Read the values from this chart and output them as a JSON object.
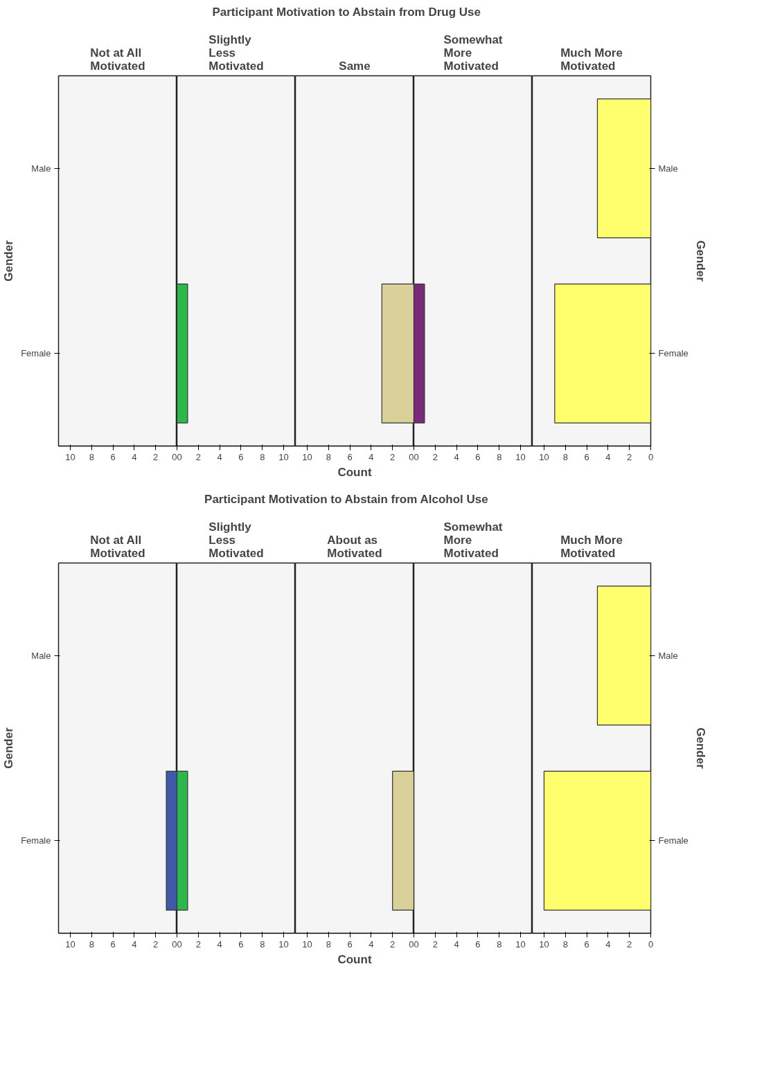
{
  "chart_data": [
    {
      "type": "other",
      "title": "Participant Motivation to Abstain from Drug Use"
    },
    {
      "type": "bar",
      "orientation": "horizontal",
      "subtitle": "Not at All Motivated",
      "ylabel": "Gender",
      "categories": [
        "Male",
        "Female"
      ],
      "values": [
        0,
        0
      ],
      "color": "#3e5aa8",
      "xlim": [
        11.1,
        0
      ],
      "xticks": [
        10,
        8,
        6,
        4,
        2,
        0
      ]
    },
    {
      "type": "bar",
      "orientation": "horizontal",
      "subtitle": "Slightly Less Motivated",
      "categories": [
        "Male",
        "Female"
      ],
      "values": [
        0,
        1
      ],
      "color": "#2db84b",
      "xlim": [
        0,
        11.1
      ],
      "xticks": [
        0,
        2,
        4,
        6,
        8,
        10
      ],
      "tick_labels": "x"
    },
    {
      "type": "bar",
      "orientation": "horizontal",
      "subtitle": "Same",
      "xlabel": "Count",
      "categories": [
        "Male",
        "Female"
      ],
      "values": [
        0,
        3
      ],
      "color": "#d9d09a",
      "xlim": [
        11.1,
        0
      ],
      "xticks": [
        10,
        8,
        6,
        4,
        2,
        0
      ],
      "tick_labels": "x"
    },
    {
      "type": "bar",
      "orientation": "horizontal",
      "subtitle": "Somewhat More Motivated",
      "categories": [
        "Male",
        "Female"
      ],
      "values": [
        0,
        1
      ],
      "color": "#7b2a7b",
      "xlim": [
        0,
        11.1
      ],
      "xticks": [
        0,
        2,
        4,
        6,
        8,
        10
      ],
      "tick_labels": "x"
    },
    {
      "type": "bar",
      "orientation": "horizontal",
      "subtitle": "Much More Motivated",
      "y2label": "Gender",
      "categories": [
        "Male",
        "Female"
      ],
      "values": [
        5,
        9
      ],
      "color": "#ffff6e",
      "xlim": [
        11.1,
        0
      ],
      "xticks": [
        10,
        8,
        6,
        4,
        2,
        0
      ]
    },
    {
      "type": "other",
      "title": "Participant Motivation to Abstain from Alcohol Use"
    },
    {
      "type": "bar",
      "orientation": "horizontal",
      "subtitle": "Not at All Motivated",
      "ylabel": "Gender",
      "categories": [
        "Male",
        "Female"
      ],
      "values": [
        0,
        1
      ],
      "color": "#3e5aa8",
      "xlim": [
        11.1,
        0
      ],
      "xticks": [
        10,
        8,
        6,
        4,
        2,
        0
      ]
    },
    {
      "type": "bar",
      "orientation": "horizontal",
      "subtitle": "Slightly Less Motivated",
      "categories": [
        "Male",
        "Female"
      ],
      "values": [
        0,
        1
      ],
      "color": "#2db84b",
      "xlim": [
        0,
        11.1
      ],
      "xticks": [
        0,
        2,
        4,
        6,
        8,
        10
      ],
      "tick_labels": "x"
    },
    {
      "type": "bar",
      "orientation": "horizontal",
      "subtitle": "About as Motivated",
      "xlabel": "Count",
      "categories": [
        "Male",
        "Female"
      ],
      "values": [
        0,
        2
      ],
      "color": "#d9d09a",
      "xlim": [
        11.1,
        0
      ],
      "xticks": [
        10,
        8,
        6,
        4,
        2,
        0
      ],
      "tick_labels": "x"
    },
    {
      "type": "bar",
      "orientation": "horizontal",
      "subtitle": "Somewhat More Motivated",
      "categories": [
        "Male",
        "Female"
      ],
      "values": [
        0,
        0
      ],
      "color": "#7b2a7b",
      "xlim": [
        0,
        11.1
      ],
      "xticks": [
        0,
        2,
        4,
        6,
        8,
        10
      ],
      "tick_labels": "x"
    },
    {
      "type": "bar",
      "orientation": "horizontal",
      "subtitle": "Much More Motivated",
      "y2label": "Gender",
      "categories": [
        "Male",
        "Female"
      ],
      "values": [
        5,
        10
      ],
      "color": "#ffff6e",
      "xlim": [
        11.1,
        0
      ],
      "xticks": [
        10,
        8,
        6,
        4,
        2,
        0
      ]
    }
  ]
}
